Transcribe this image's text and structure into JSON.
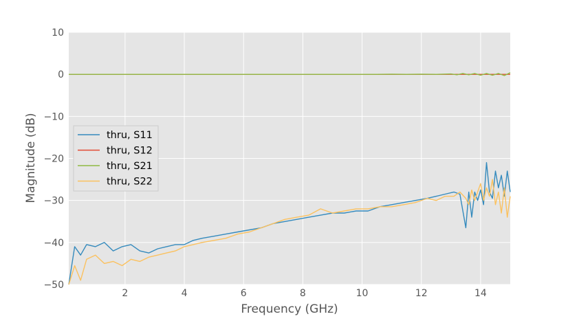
{
  "chart_data": {
    "type": "line",
    "title": "",
    "xlabel": "Frequency (GHz)",
    "ylabel": "Magnitude (dB)",
    "xlim": [
      0.1,
      15.0
    ],
    "ylim": [
      -50,
      10
    ],
    "xticks": [
      2,
      4,
      6,
      8,
      10,
      12,
      14
    ],
    "xtick_labels": [
      "2",
      "4",
      "6",
      "8",
      "10",
      "12",
      "14"
    ],
    "yticks": [
      10,
      0,
      -10,
      -20,
      -30,
      -40,
      -50
    ],
    "ytick_labels": [
      "10",
      "0",
      "−10",
      "−20",
      "−30",
      "−40",
      "−50"
    ],
    "grid": true,
    "style": "ggplot",
    "legend_position": "center-left",
    "series": [
      {
        "name": "thru, S11",
        "color": "#348ABD",
        "x": [
          0.1,
          0.3,
          0.5,
          0.7,
          1.0,
          1.3,
          1.6,
          1.9,
          2.2,
          2.5,
          2.8,
          3.1,
          3.4,
          3.7,
          4.0,
          4.3,
          4.6,
          5.0,
          5.4,
          5.8,
          6.2,
          6.6,
          7.0,
          7.4,
          7.8,
          8.2,
          8.6,
          9.0,
          9.4,
          9.8,
          10.2,
          10.6,
          11.0,
          11.4,
          11.8,
          12.2,
          12.5,
          12.8,
          13.1,
          13.3,
          13.5,
          13.6,
          13.7,
          13.8,
          13.9,
          14.0,
          14.1,
          14.2,
          14.3,
          14.4,
          14.5,
          14.6,
          14.7,
          14.8,
          14.9,
          15.0
        ],
        "y": [
          -50,
          -41,
          -43,
          -40.5,
          -41,
          -40,
          -42,
          -41,
          -40.5,
          -42,
          -42.5,
          -41.5,
          -41,
          -40.5,
          -40.5,
          -39.5,
          -39,
          -38.5,
          -38,
          -37.5,
          -37,
          -36.5,
          -35.5,
          -35,
          -34.5,
          -34,
          -33.5,
          -33,
          -33,
          -32.5,
          -32.5,
          -31.5,
          -31,
          -30.5,
          -30,
          -29.5,
          -29,
          -28.5,
          -28,
          -28.5,
          -36.5,
          -28,
          -34,
          -28,
          -30,
          -27.5,
          -31,
          -21,
          -28,
          -29.5,
          -23,
          -27,
          -24,
          -29,
          -23,
          -28
        ]
      },
      {
        "name": "thru, S12",
        "color": "#E24A33",
        "x": [
          0.1,
          2.0,
          4.0,
          6.0,
          8.0,
          10.0,
          12.0,
          14.0,
          15.0
        ],
        "y": [
          0,
          0,
          0,
          0,
          0,
          0,
          0,
          0,
          0
        ]
      },
      {
        "name": "thru, S21",
        "color": "#8EBA42",
        "x": [
          0.1,
          2.0,
          4.0,
          6.0,
          8.0,
          10.0,
          10.5,
          11.0,
          11.5,
          12.0,
          12.5,
          13.0,
          13.2,
          13.4,
          13.6,
          13.8,
          14.0,
          14.2,
          14.4,
          14.6,
          14.8,
          15.0
        ],
        "y": [
          0,
          0,
          0,
          0,
          0,
          0,
          0,
          0.05,
          0,
          0.05,
          0,
          0.1,
          -0.1,
          0.2,
          -0.1,
          0.2,
          -0.2,
          0.2,
          -0.2,
          0.2,
          -0.3,
          0.4
        ]
      },
      {
        "name": "thru, S22",
        "color": "#FBC15E",
        "x": [
          0.1,
          0.3,
          0.5,
          0.7,
          1.0,
          1.3,
          1.6,
          1.9,
          2.2,
          2.5,
          2.8,
          3.1,
          3.4,
          3.7,
          4.0,
          4.3,
          4.6,
          5.0,
          5.4,
          5.8,
          6.2,
          6.6,
          7.0,
          7.4,
          7.8,
          8.2,
          8.6,
          9.0,
          9.4,
          9.8,
          10.2,
          10.6,
          11.0,
          11.4,
          11.8,
          12.2,
          12.5,
          12.8,
          13.1,
          13.3,
          13.5,
          13.6,
          13.7,
          13.8,
          13.9,
          14.0,
          14.1,
          14.2,
          14.3,
          14.4,
          14.5,
          14.6,
          14.7,
          14.8,
          14.9,
          15.0
        ],
        "y": [
          -50,
          -45.5,
          -49,
          -44,
          -43,
          -45,
          -44.5,
          -45.5,
          -44,
          -44.5,
          -43.5,
          -43,
          -42.5,
          -42,
          -41,
          -40.5,
          -40,
          -39.5,
          -39,
          -38,
          -37.5,
          -36.5,
          -35.5,
          -34.5,
          -34,
          -33.5,
          -32,
          -33,
          -32.5,
          -32,
          -32,
          -31.5,
          -31.5,
          -31,
          -30.5,
          -29.5,
          -30,
          -29,
          -29,
          -28,
          -29.5,
          -31,
          -27.5,
          -30,
          -28,
          -26,
          -30,
          -27,
          -29,
          -25,
          -31,
          -28,
          -33,
          -27,
          -34,
          -29
        ]
      }
    ]
  }
}
